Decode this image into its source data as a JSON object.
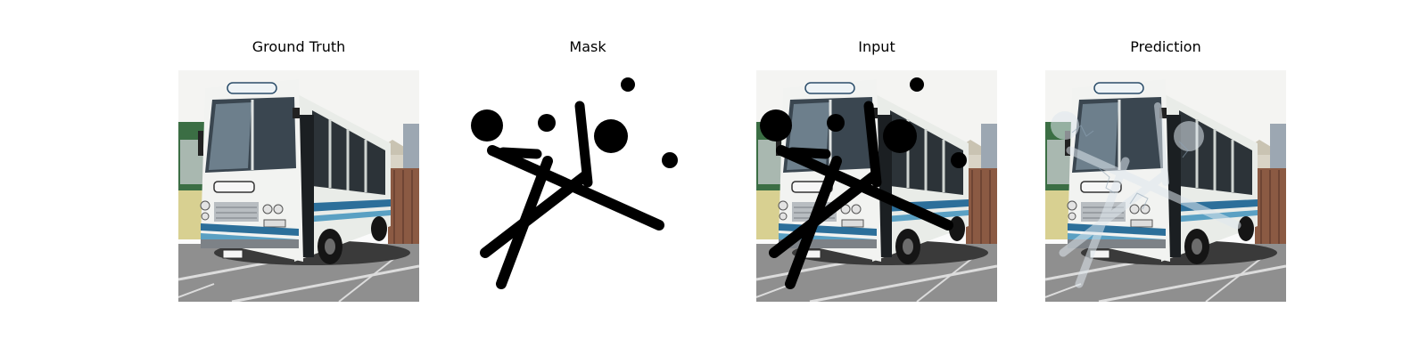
{
  "panels": [
    {
      "title": "Ground Truth"
    },
    {
      "title": "Mask"
    },
    {
      "title": "Input"
    },
    {
      "title": "Prediction"
    }
  ]
}
